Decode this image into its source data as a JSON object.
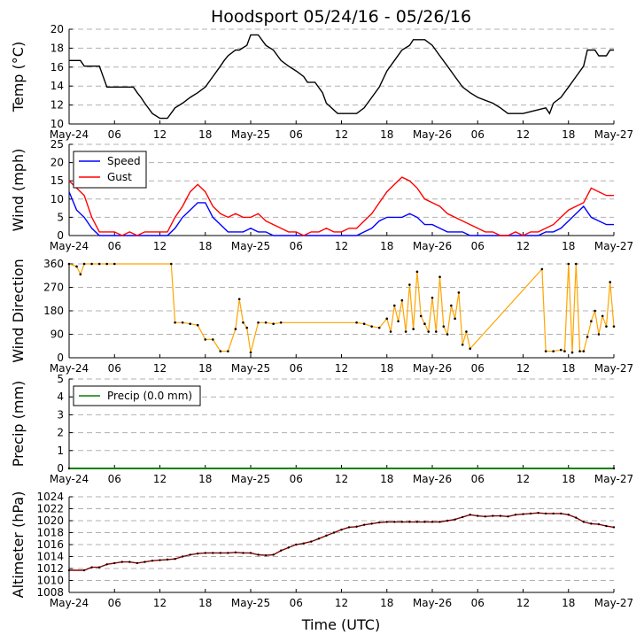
{
  "title": "Hoodsport 05/24/16 - 05/26/16",
  "xlabel": "Time (UTC)",
  "x_ticks": [
    "May-24",
    "06",
    "12",
    "18",
    "May-25",
    "06",
    "12",
    "18",
    "May-26",
    "06",
    "12",
    "18",
    "May-27"
  ],
  "x_range_hours": [
    0,
    72
  ],
  "chart_data": [
    {
      "type": "line",
      "id": "temp",
      "ylabel": "Temp (°C)",
      "ylim": [
        10,
        20
      ],
      "yticks": [
        10,
        12,
        14,
        16,
        18,
        20
      ],
      "series": [
        {
          "name": "Temp",
          "color": "#000000",
          "x": [
            0,
            1.5,
            2,
            4,
            5,
            8.5,
            9,
            9.5,
            10,
            11,
            12,
            13,
            14,
            15,
            16,
            17,
            18,
            19,
            20,
            20.5,
            21,
            22,
            22.5,
            23.5,
            24,
            25,
            26,
            27,
            28,
            29,
            30,
            31,
            31.5,
            32.5,
            33.5,
            34,
            35.5,
            37,
            38,
            39,
            40,
            41,
            42,
            43,
            44,
            45,
            45.5,
            46,
            47,
            48,
            49,
            50,
            51,
            52,
            53,
            54,
            56,
            57,
            58,
            60,
            63,
            63.5,
            64,
            65,
            66,
            67,
            68,
            68.5,
            69.5,
            70,
            71,
            71.5,
            72
          ],
          "y": [
            16.7,
            16.7,
            16.1,
            16.1,
            13.9,
            13.9,
            13.3,
            12.8,
            12.2,
            11.1,
            10.6,
            10.6,
            11.7,
            12.2,
            12.8,
            13.3,
            13.9,
            15,
            16.1,
            16.7,
            17.2,
            17.8,
            17.8,
            18.3,
            19.4,
            19.4,
            18.3,
            17.8,
            16.7,
            16.1,
            15.6,
            15,
            14.4,
            14.4,
            13.3,
            12.2,
            11.1,
            11.1,
            11.1,
            11.7,
            12.8,
            13.9,
            15.6,
            16.7,
            17.8,
            18.3,
            18.9,
            18.9,
            18.9,
            18.3,
            17.2,
            16.1,
            15,
            13.9,
            13.3,
            12.8,
            12.2,
            11.7,
            11.1,
            11.1,
            11.7,
            11.1,
            12.2,
            12.8,
            13.9,
            15,
            16.1,
            17.8,
            17.8,
            17.2,
            17.2,
            17.8,
            17.8
          ]
        }
      ]
    },
    {
      "type": "line",
      "id": "wind",
      "ylabel": "Wind (mph)",
      "ylim": [
        0,
        25
      ],
      "yticks": [
        0,
        5,
        10,
        15,
        20,
        25
      ],
      "legend": "top-left",
      "series": [
        {
          "name": "Speed",
          "color": "#0000ff",
          "x": [
            0,
            1,
            2,
            3,
            4,
            5,
            6,
            7,
            8,
            9,
            10,
            11,
            12,
            13,
            14,
            15,
            16,
            17,
            18,
            19,
            20,
            21,
            22,
            23,
            24,
            25,
            26,
            27,
            28,
            29,
            30,
            31,
            32,
            33,
            34,
            35,
            36,
            37,
            38,
            39,
            40,
            41,
            42,
            43,
            44,
            45,
            46,
            47,
            48,
            49,
            50,
            51,
            52,
            53,
            54,
            55,
            56,
            57,
            58,
            59,
            60,
            61,
            62,
            63,
            64,
            65,
            66,
            67,
            68,
            69,
            70,
            71,
            72
          ],
          "y": [
            12,
            7,
            5,
            2,
            0,
            0,
            0,
            0,
            0,
            0,
            0,
            0,
            0,
            0,
            2,
            5,
            7,
            9,
            9,
            5,
            3,
            1,
            1,
            1,
            2,
            1,
            1,
            0,
            0,
            0,
            0,
            0,
            0,
            0,
            0,
            0,
            0,
            0,
            0,
            1,
            2,
            4,
            5,
            5,
            5,
            6,
            5,
            3,
            3,
            2,
            1,
            1,
            1,
            0,
            0,
            0,
            0,
            0,
            0,
            0,
            0,
            0,
            0,
            1,
            1,
            2,
            4,
            6,
            8,
            5,
            4,
            3,
            3
          ]
        },
        {
          "name": "Gust",
          "color": "#ff0000",
          "x": [
            0,
            1,
            2,
            3,
            4,
            5,
            6,
            7,
            8,
            9,
            10,
            11,
            12,
            13,
            14,
            15,
            16,
            17,
            18,
            19,
            20,
            21,
            22,
            23,
            24,
            25,
            26,
            27,
            28,
            29,
            30,
            31,
            32,
            33,
            34,
            35,
            36,
            37,
            38,
            39,
            40,
            41,
            42,
            43,
            44,
            45,
            46,
            47,
            48,
            49,
            50,
            51,
            52,
            53,
            54,
            55,
            56,
            57,
            58,
            59,
            60,
            61,
            62,
            63,
            64,
            65,
            66,
            67,
            68,
            69,
            70,
            71,
            72
          ],
          "y": [
            15,
            13,
            11,
            5,
            1,
            1,
            1,
            0,
            1,
            0,
            1,
            1,
            1,
            1,
            5,
            8,
            12,
            14,
            12,
            8,
            6,
            5,
            6,
            5,
            5,
            6,
            4,
            3,
            2,
            1,
            1,
            0,
            1,
            1,
            2,
            1,
            1,
            2,
            2,
            4,
            6,
            9,
            12,
            14,
            16,
            15,
            13,
            10,
            9,
            8,
            6,
            5,
            4,
            3,
            2,
            1,
            1,
            0,
            0,
            1,
            0,
            1,
            1,
            2,
            3,
            5,
            7,
            8,
            9,
            13,
            12,
            11,
            11
          ]
        }
      ]
    },
    {
      "type": "scatter",
      "id": "wdir",
      "ylabel": "Wind Direction",
      "ylim": [
        0,
        360
      ],
      "yticks": [
        0,
        90,
        180,
        270,
        360
      ],
      "series": [
        {
          "name": "Direction",
          "color": "#ffa500",
          "x": [
            0,
            1,
            1.5,
            2,
            3,
            4,
            5,
            6,
            13.5,
            14,
            15,
            16,
            17,
            18,
            19,
            20,
            21,
            22,
            22.5,
            23,
            23.5,
            24,
            25,
            26,
            27,
            28,
            38,
            39,
            40,
            41,
            42,
            42.5,
            43,
            43.5,
            44,
            44.5,
            45,
            45.5,
            46,
            46.5,
            47,
            47.5,
            48,
            48.5,
            49,
            49.5,
            50,
            50.5,
            51,
            51.5,
            52,
            52.5,
            53,
            62.5,
            63,
            64,
            65,
            65.5,
            66,
            66.5,
            67,
            67.5,
            68,
            68.5,
            69,
            69.5,
            70,
            70.5,
            71,
            71.5,
            72
          ],
          "y": [
            360,
            350,
            320,
            360,
            360,
            360,
            360,
            360,
            360,
            135,
            135,
            130,
            125,
            70,
            70,
            25,
            25,
            110,
            225,
            135,
            115,
            20,
            135,
            135,
            130,
            135,
            135,
            130,
            120,
            115,
            150,
            100,
            200,
            140,
            220,
            100,
            280,
            110,
            330,
            160,
            130,
            100,
            230,
            100,
            310,
            120,
            90,
            200,
            150,
            250,
            50,
            100,
            35,
            340,
            25,
            25,
            30,
            25,
            360,
            20,
            360,
            25,
            25,
            80,
            140,
            180,
            90,
            160,
            120,
            290,
            120
          ]
        }
      ]
    },
    {
      "type": "line",
      "id": "precip",
      "ylabel": "Precip (mm)",
      "ylim": [
        0,
        5
      ],
      "yticks": [
        0,
        1,
        2,
        3,
        4,
        5
      ],
      "legend": "top-left",
      "series": [
        {
          "name": "Precip (0.0 mm)",
          "color": "#008000",
          "x": [
            0,
            72
          ],
          "y": [
            0,
            0
          ]
        }
      ]
    },
    {
      "type": "line",
      "id": "alt",
      "ylabel": "Altimeter (hPa)",
      "ylim": [
        1008,
        1024
      ],
      "yticks": [
        1008,
        1010,
        1012,
        1014,
        1016,
        1018,
        1020,
        1022,
        1024
      ],
      "series": [
        {
          "name": "Altimeter",
          "color": "#8b0000",
          "x": [
            0,
            2,
            3,
            4,
            5,
            6,
            7,
            8,
            9,
            10,
            11,
            12,
            13,
            14,
            15,
            16,
            17,
            18,
            19,
            20,
            21,
            22,
            23,
            24,
            25,
            26,
            27,
            28,
            29,
            30,
            31,
            32,
            33,
            34,
            35,
            36,
            37,
            38,
            39,
            40,
            41,
            42,
            43,
            44,
            45,
            46,
            47,
            48,
            49,
            50,
            51,
            52,
            53,
            54,
            55,
            56,
            57,
            58,
            59,
            60,
            61,
            62,
            63,
            64,
            65,
            66,
            67,
            68,
            69,
            70,
            71,
            72
          ],
          "y": [
            1011.7,
            1011.7,
            1012.2,
            1012.2,
            1012.7,
            1012.9,
            1013.1,
            1013.1,
            1012.9,
            1013.1,
            1013.3,
            1013.4,
            1013.5,
            1013.6,
            1014,
            1014.3,
            1014.5,
            1014.6,
            1014.6,
            1014.6,
            1014.6,
            1014.7,
            1014.6,
            1014.6,
            1014.3,
            1014.2,
            1014.3,
            1015,
            1015.5,
            1016,
            1016.2,
            1016.5,
            1017,
            1017.5,
            1018,
            1018.5,
            1018.9,
            1019,
            1019.3,
            1019.5,
            1019.7,
            1019.8,
            1019.8,
            1019.8,
            1019.8,
            1019.8,
            1019.8,
            1019.8,
            1019.8,
            1020,
            1020.2,
            1020.6,
            1021,
            1020.8,
            1020.7,
            1020.8,
            1020.8,
            1020.7,
            1021,
            1021.1,
            1021.2,
            1021.3,
            1021.2,
            1021.2,
            1021.2,
            1021,
            1020.5,
            1019.8,
            1019.5,
            1019.4,
            1019.1,
            1018.9
          ]
        }
      ]
    }
  ]
}
